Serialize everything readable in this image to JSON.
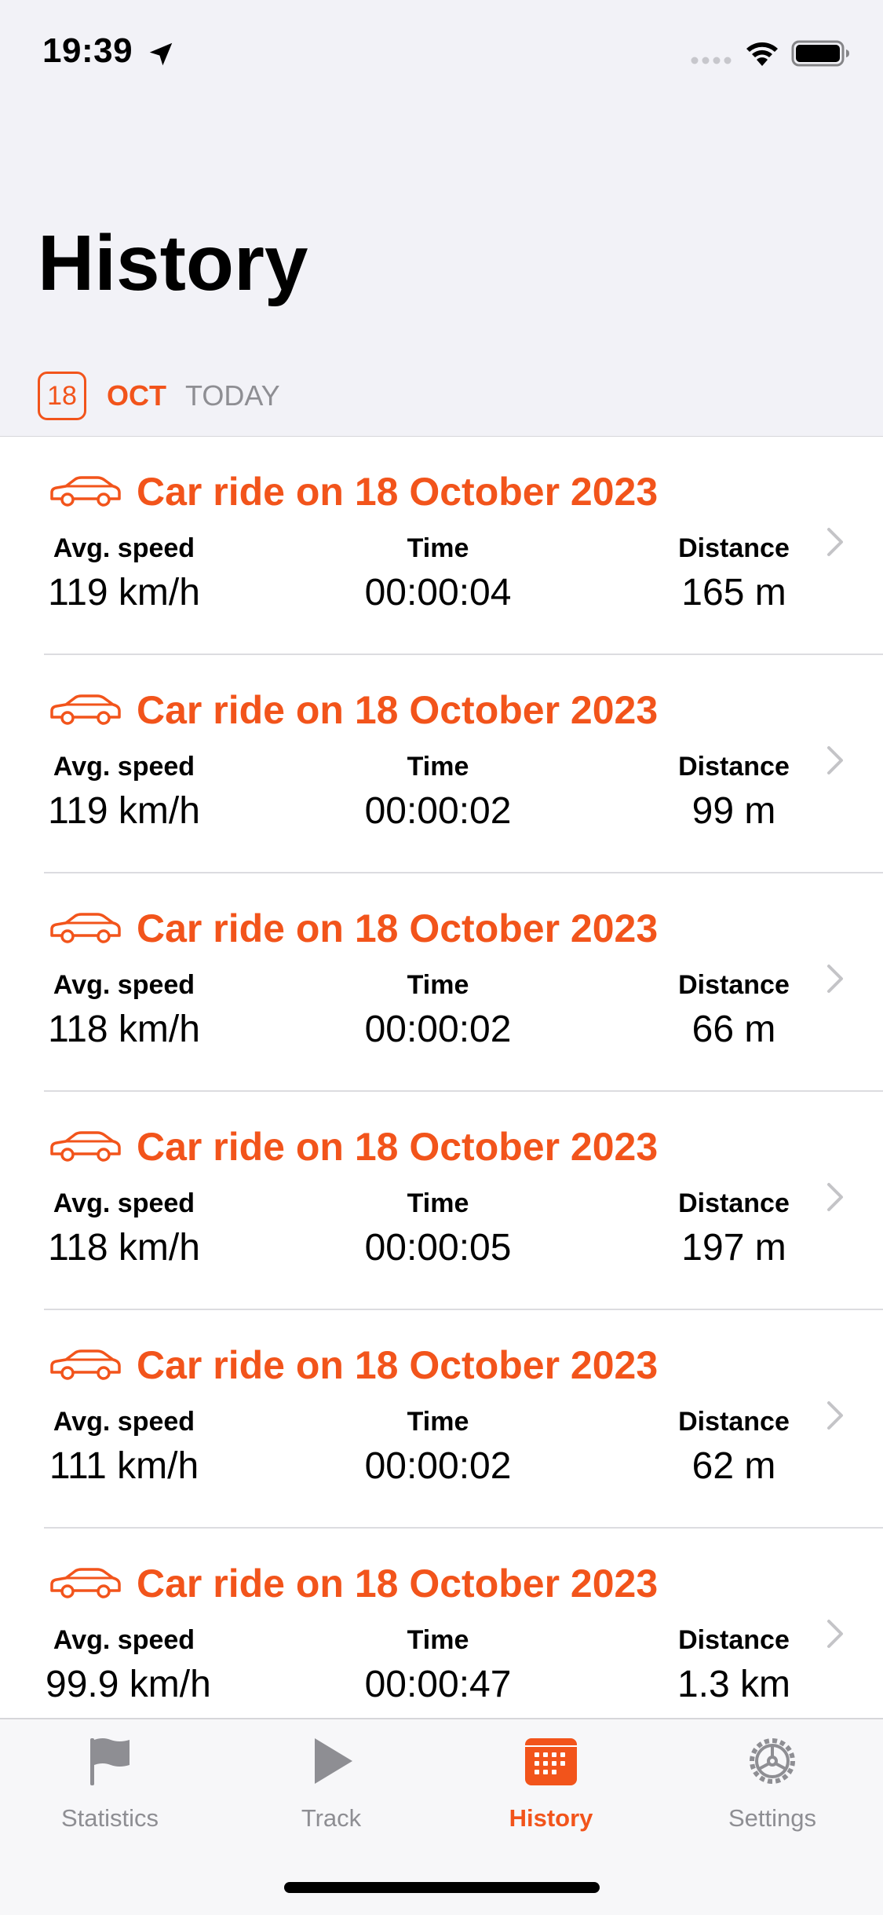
{
  "status_bar": {
    "time": "19:39"
  },
  "page": {
    "title": "History"
  },
  "date_header": {
    "day": "18",
    "month": "OCT",
    "relative": "TODAY"
  },
  "colors": {
    "accent": "#F2541B",
    "secondary_text": "#8E8E93",
    "background": "#F2F2F7"
  },
  "labels": {
    "avg_speed": "Avg. speed",
    "time": "Time",
    "distance": "Distance"
  },
  "rides": [
    {
      "title": "Car ride on 18 October 2023",
      "avg_speed": "119 km/h",
      "time": "00:00:04",
      "distance": "165 m"
    },
    {
      "title": "Car ride on 18 October 2023",
      "avg_speed": "119 km/h",
      "time": "00:00:02",
      "distance": "99 m"
    },
    {
      "title": "Car ride on 18 October 2023",
      "avg_speed": "118 km/h",
      "time": "00:00:02",
      "distance": "66 m"
    },
    {
      "title": "Car ride on 18 October 2023",
      "avg_speed": "118 km/h",
      "time": "00:00:05",
      "distance": "197 m"
    },
    {
      "title": "Car ride on 18 October 2023",
      "avg_speed": "111 km/h",
      "time": "00:00:02",
      "distance": "62 m"
    },
    {
      "title": "Car ride on 18 October 2023",
      "avg_speed": "99.9 km/h",
      "time": "00:00:47",
      "distance": "1.3 km"
    }
  ],
  "tab_bar": {
    "tabs": [
      {
        "label": "Statistics",
        "icon": "flag-icon"
      },
      {
        "label": "Track",
        "icon": "play-icon"
      },
      {
        "label": "History",
        "icon": "calendar-icon",
        "active": true
      },
      {
        "label": "Settings",
        "icon": "gear-icon"
      }
    ]
  }
}
